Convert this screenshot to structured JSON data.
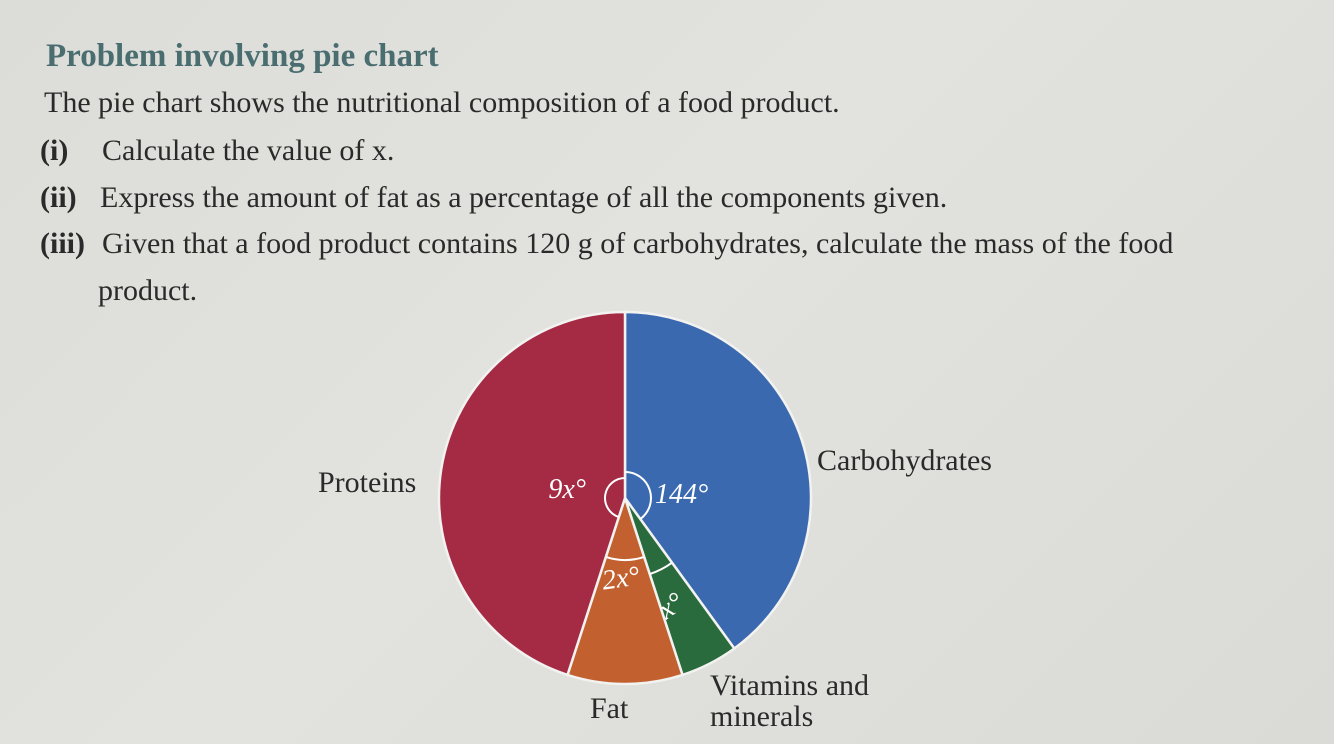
{
  "heading": "Problem involving pie chart",
  "intro": "The pie chart shows the nutritional composition of a food product.",
  "questions": [
    {
      "number": "(i)",
      "text": "Calculate the value of x."
    },
    {
      "number": "(ii)",
      "text": "Express the amount of fat as a percentage of all the components given."
    },
    {
      "number": "(iii)",
      "text": "Given that a food product contains 120 g of carbohydrates, calculate the mass of the food",
      "continuation": "product."
    }
  ],
  "chart_data": {
    "type": "pie",
    "title": "",
    "slices": [
      {
        "name": "Carbohydrates",
        "angle_label": "144°",
        "angle_degrees": 144,
        "color": "#3b69b0"
      },
      {
        "name": "Vitamins and minerals",
        "angle_label": "x°",
        "coefficient": 1,
        "color": "#2a6b3d"
      },
      {
        "name": "Fat",
        "angle_label": "2x°",
        "coefficient": 2,
        "color": "#c2602f"
      },
      {
        "name": "Proteins",
        "angle_label": "9x°",
        "coefficient": 9,
        "color": "#a52a44"
      }
    ],
    "slice_order": "clockwise from top"
  }
}
